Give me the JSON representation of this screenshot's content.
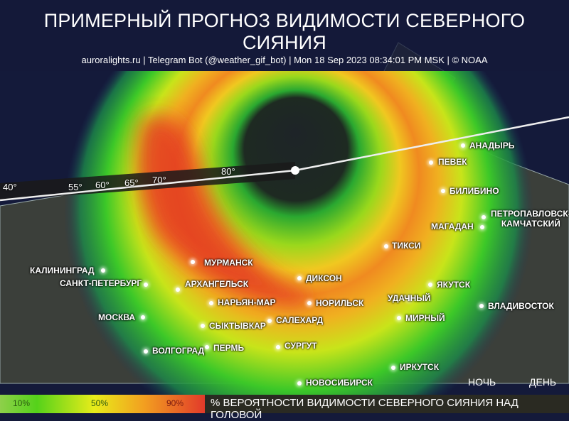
{
  "header": {
    "title": "ПРИМЕРНЫЙ ПРОГНОЗ ВИДИМОСТИ СЕВЕРНОГО СИЯНИЯ",
    "subtitle": "auroralights.ru | Telegram Bot (@weather_gif_bot) | Mon 18 Sep 2023 08:34:01 PM MSK | © NOAA"
  },
  "latitudes": [
    "40°",
    "55°",
    "60°",
    "65°",
    "70°",
    "80°"
  ],
  "cities": [
    "АНАДЫРЬ",
    "ПЕВЕК",
    "БИЛИБИНО",
    "ПЕТРОПАВЛОВСК-\nКАМЧАТСКИЙ",
    "МАГАДАН",
    "ТИКСИ",
    "МУРМАНСК",
    "КАЛИНИНГРАД",
    "САНКТ-ПЕТЕРБУРГ",
    "АРХАНГЕЛЬСК",
    "ДИКСОН",
    "ЯКУТСК",
    "НАРЬЯН-МАР",
    "НОРИЛЬСК",
    "УДАЧНЫЙ",
    "ВЛАДИВОСТОК",
    "МОСКВА",
    "САЛЕХАРД",
    "МИРНЫЙ",
    "СЫКТЫВКАР",
    "ПЕРМЬ",
    "СУРГУТ",
    "ВОЛГОГРАД",
    "ИРКУТСК",
    "НОВОСИБИРСК"
  ],
  "daynight": {
    "night": "НОЧЬ",
    "day": "ДЕНЬ"
  },
  "legend": {
    "ticks": [
      "10%",
      "50%",
      "90%"
    ],
    "label": "% ВЕРОЯТНОСТИ ВИДИМОСТИ СЕВЕРНОГО СИЯНИЯ НАД ГОЛОВОЙ"
  },
  "colors": {
    "low": "#55d21a",
    "mid": "#e8ec1a",
    "high": "#e23a2a",
    "background": "#141a3a"
  }
}
